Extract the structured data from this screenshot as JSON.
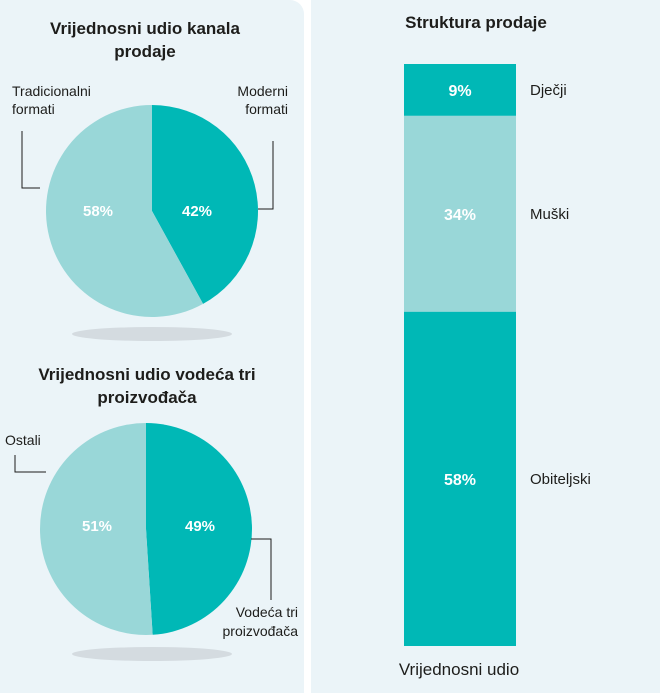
{
  "colors": {
    "dark": "#00b8b6",
    "light": "#99d7d8",
    "panel": "#ebf4f8",
    "shadow": "#d4dbe0"
  },
  "chart_data": [
    {
      "type": "pie",
      "title": "Vrijednosni udio kanala prodaje",
      "slices": [
        {
          "label": "Moderni formati",
          "label_lines": [
            "Moderni",
            "formati"
          ],
          "value": 42,
          "display": "42%",
          "color": "#00b8b6"
        },
        {
          "label": "Tradicionalni formati",
          "label_lines": [
            "Tradicionalni",
            "formati"
          ],
          "value": 58,
          "display": "58%",
          "color": "#99d7d8"
        }
      ]
    },
    {
      "type": "pie",
      "title": "Vrijednosni udio vodeća tri proizvođača",
      "slices": [
        {
          "label": "Vodeća tri proizvođača",
          "label_lines": [
            "Vodeća tri",
            "proizvođača"
          ],
          "value": 49,
          "display": "49%",
          "color": "#00b8b6"
        },
        {
          "label": "Ostali",
          "label_lines": [
            "Ostali"
          ],
          "value": 51,
          "display": "51%",
          "color": "#99d7d8"
        }
      ]
    },
    {
      "type": "bar",
      "stacked": true,
      "title": "Struktura prodaje",
      "xlabel": "Vrijednosni udio",
      "segments": [
        {
          "label": "Dječji",
          "value": 9,
          "display": "9%",
          "color": "#00b8b6"
        },
        {
          "label": "Muški",
          "value": 34,
          "display": "34%",
          "color": "#99d7d8"
        },
        {
          "label": "Obiteljski",
          "value": 58,
          "display": "58%",
          "color": "#00b8b6"
        }
      ]
    }
  ],
  "pie1": {
    "title_lines": [
      "Vrijednosni udio kanala",
      "prodaje"
    ]
  },
  "pie2": {
    "title_lines": [
      "Vrijednosni udio vodeća tri",
      "proizvođača"
    ]
  }
}
